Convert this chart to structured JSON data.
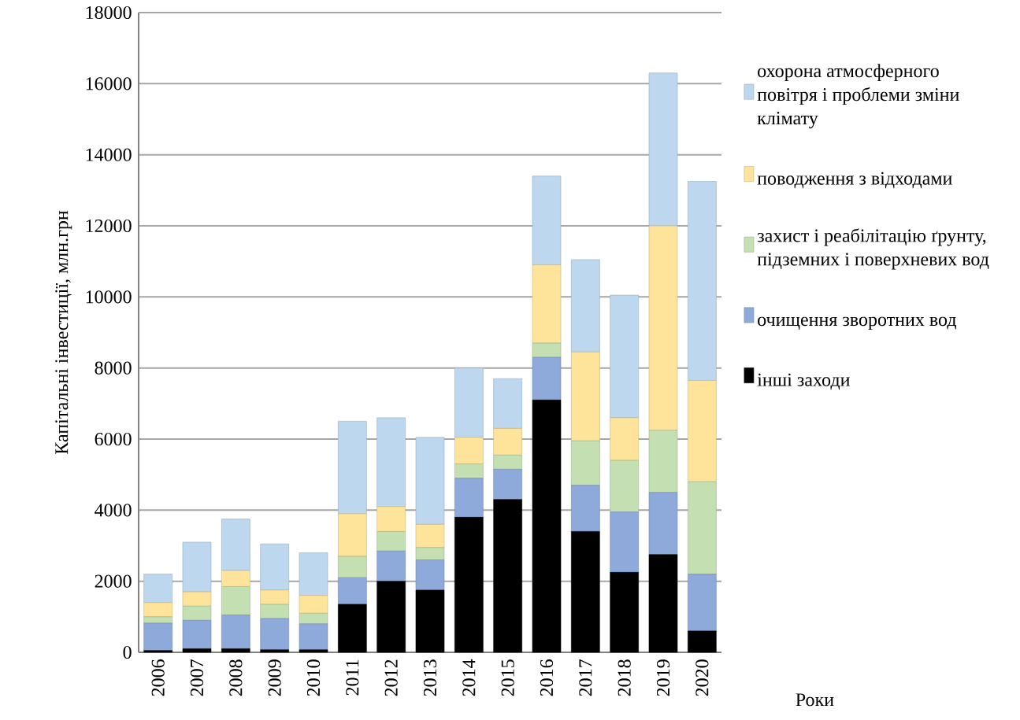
{
  "chart_data": {
    "type": "bar",
    "stacked": true,
    "ylabel": "Капітальні інвестиції, млн.грн",
    "annotations": [
      "Роки"
    ],
    "categories": [
      "2006",
      "2007",
      "2008",
      "2009",
      "2010",
      "2011",
      "2012",
      "2013",
      "2014",
      "2015",
      "2016",
      "2017",
      "2018",
      "2019",
      "2020"
    ],
    "series": [
      {
        "name": "інші заходи",
        "color": "#000000",
        "values": [
          50,
          100,
          100,
          70,
          70,
          1350,
          2000,
          1750,
          3800,
          4300,
          7100,
          3400,
          2250,
          2750,
          600
        ]
      },
      {
        "name": "очищення зворотних вод",
        "color": "#8eaadb",
        "values": [
          770,
          800,
          950,
          880,
          730,
          750,
          850,
          850,
          1100,
          850,
          1200,
          1300,
          1700,
          1750,
          1600
        ]
      },
      {
        "name": "захист і реабілітацію ґрунту, підземних і поверхневих вод",
        "color": "#c4dfb1",
        "values": [
          180,
          400,
          800,
          400,
          300,
          600,
          550,
          350,
          400,
          400,
          400,
          1250,
          1450,
          1750,
          2600
        ]
      },
      {
        "name": "поводження з відходами",
        "color": "#fde49a",
        "values": [
          400,
          400,
          450,
          400,
          500,
          1200,
          700,
          650,
          750,
          750,
          2200,
          2500,
          1200,
          5750,
          2850
        ]
      },
      {
        "name": "охорона атмосферного повітря і проблеми зміни клімату",
        "color": "#bdd7ee",
        "values": [
          800,
          1400,
          1450,
          1300,
          1200,
          2600,
          2500,
          2450,
          1950,
          1400,
          2500,
          2600,
          3450,
          4300,
          5600
        ]
      }
    ],
    "ylim": [
      0,
      18000
    ],
    "yticks": [
      0,
      2000,
      4000,
      6000,
      8000,
      10000,
      12000,
      14000,
      16000,
      18000
    ],
    "grid": "y",
    "legend": "right"
  }
}
